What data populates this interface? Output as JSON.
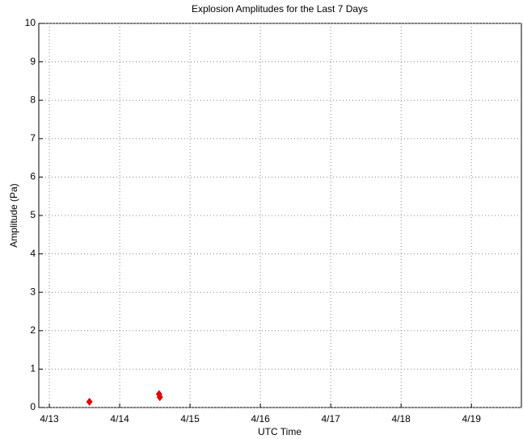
{
  "chart_data": {
    "type": "scatter",
    "title": "Explosion Amplitudes for the Last 7 Days",
    "xlabel": "UTC Time",
    "ylabel": "Amplitude (Pa)",
    "series": [
      {
        "color": "#e00000",
        "x": [
          13.57,
          14.56,
          14.57
        ],
        "values": [
          0.15,
          0.35,
          0.27
        ]
      }
    ],
    "xlim": [
      12.85,
      19.71
    ],
    "xticks": [
      {
        "value": 13,
        "label": "4/13"
      },
      {
        "value": 14,
        "label": "4/14"
      },
      {
        "value": 15,
        "label": "4/15"
      },
      {
        "value": 16,
        "label": "4/16"
      },
      {
        "value": 17,
        "label": "4/17"
      },
      {
        "value": 18,
        "label": "4/18"
      },
      {
        "value": 19,
        "label": "4/19"
      }
    ],
    "ylim": [
      0,
      10
    ],
    "yticks": [
      0,
      1,
      2,
      3,
      4,
      5,
      6,
      7,
      8,
      9,
      10
    ],
    "grid": true
  }
}
